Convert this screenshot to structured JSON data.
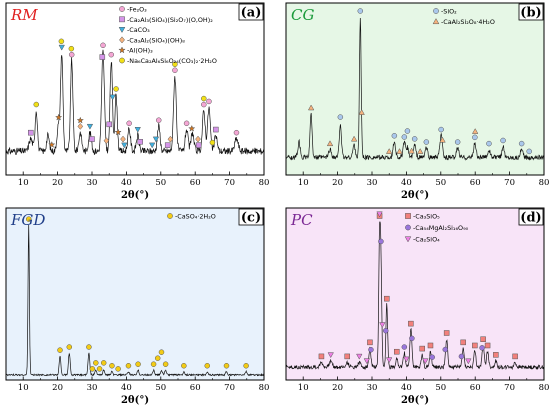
{
  "chart_data": [
    {
      "type": "line",
      "panel_label": "(a)",
      "title": "RM",
      "title_color": "#e02020",
      "background": "#ffffff",
      "xlabel": "2θ(°)",
      "xlim": [
        5,
        80
      ],
      "xticks": [
        10,
        20,
        30,
        40,
        50,
        60,
        70,
        80
      ],
      "ylim": [
        0,
        100
      ],
      "pattern": {
        "baseline": 14,
        "noise": 2.2,
        "peaks": [
          [
            12.2,
            8,
            0.5
          ],
          [
            13.8,
            26,
            0.35
          ],
          [
            17.2,
            10,
            0.4
          ],
          [
            20.2,
            16,
            0.4
          ],
          [
            21.2,
            62,
            0.35
          ],
          [
            24.1,
            58,
            0.35
          ],
          [
            26.6,
            12,
            0.4
          ],
          [
            29.4,
            12,
            0.4
          ],
          [
            33.2,
            64,
            0.4
          ],
          [
            35.6,
            58,
            0.35
          ],
          [
            37.0,
            36,
            0.35
          ],
          [
            40.8,
            14,
            0.4
          ],
          [
            43.3,
            10,
            0.4
          ],
          [
            49.4,
            16,
            0.4
          ],
          [
            54.1,
            48,
            0.4
          ],
          [
            57.5,
            14,
            0.4
          ],
          [
            59.2,
            12,
            0.4
          ],
          [
            62.5,
            26,
            0.4
          ],
          [
            64.0,
            28,
            0.4
          ],
          [
            66.0,
            10,
            0.4
          ],
          [
            72.0,
            8,
            0.5
          ]
        ]
      },
      "series": [
        {
          "name": "-Fe₂O₃",
          "shape": "circle",
          "color": "#f4a6d4",
          "x": [
            24.1,
            33.2,
            35.6,
            40.8,
            49.4,
            54.1,
            57.5,
            62.5,
            64.0,
            72.0
          ]
        },
        {
          "name": "-Ca₂Al₃(SiO₄)(Si₂O₇)(O,OH)₂",
          "shape": "square",
          "color": "#d494e8",
          "x": [
            12.2,
            30.0,
            33.0,
            35.0,
            44.0,
            52.0,
            61.0,
            66.0
          ]
        },
        {
          "name": "-CaCO₃",
          "shape": "triangle-down",
          "color": "#3fb0e0",
          "x": [
            21.2,
            29.4,
            36.0,
            39.4,
            43.3,
            47.5,
            48.6
          ]
        },
        {
          "name": "-Ca₃Al₂(SiO₄)(OH)₈",
          "shape": "diamond",
          "color": "#f6b37e",
          "x": [
            26.6,
            34.2,
            39.0,
            52.8,
            60.8
          ]
        },
        {
          "name": "-Al(OH)₃",
          "shape": "star",
          "color": "#d07520",
          "x": [
            18.3,
            20.3,
            26.6,
            37.6,
            59.0
          ]
        },
        {
          "name": "-Na₆Ca₂Al₆Si₆O₂₄(CO₃)₂·2H₂O",
          "shape": "circle",
          "color": "#f2e016",
          "x": [
            13.8,
            21.1,
            24.0,
            37.0,
            54.1,
            62.5,
            65.0
          ]
        }
      ]
    },
    {
      "type": "line",
      "panel_label": "(b)",
      "title": "CG",
      "title_color": "#1a9a3a",
      "background": "#e6f7e6",
      "xlabel": "2θ(°)",
      "xlim": [
        5,
        80
      ],
      "xticks": [
        10,
        20,
        30,
        40,
        50,
        60,
        70,
        80
      ],
      "ylim": [
        0,
        100
      ],
      "pattern": {
        "baseline": 10,
        "noise": 1.5,
        "peaks": [
          [
            8.8,
            10,
            0.35
          ],
          [
            12.3,
            28,
            0.3
          ],
          [
            17.8,
            5,
            0.4
          ],
          [
            20.8,
            22,
            0.3
          ],
          [
            24.8,
            8,
            0.35
          ],
          [
            26.6,
            90,
            0.25
          ],
          [
            36.5,
            10,
            0.35
          ],
          [
            39.4,
            9,
            0.35
          ],
          [
            40.3,
            6,
            0.35
          ],
          [
            42.4,
            8,
            0.35
          ],
          [
            45.8,
            6,
            0.35
          ],
          [
            50.1,
            14,
            0.35
          ],
          [
            54.9,
            6,
            0.35
          ],
          [
            59.9,
            9,
            0.35
          ],
          [
            64.0,
            5,
            0.35
          ],
          [
            68.1,
            7,
            0.35
          ],
          [
            73.5,
            5,
            0.35
          ]
        ]
      },
      "series": [
        {
          "name": "-SiO₂",
          "shape": "circle",
          "color": "#aac8ec",
          "x": [
            20.8,
            26.6,
            36.5,
            39.4,
            40.3,
            42.4,
            45.8,
            50.1,
            54.9,
            59.9,
            64.0,
            68.1,
            73.5,
            75.7
          ]
        },
        {
          "name": "-CaAl₂Si₂O₈·4H₂O",
          "shape": "triangle-up",
          "color": "#f6b37e",
          "x": [
            12.3,
            17.8,
            24.8,
            27.0,
            35.0,
            38.0,
            41.5,
            44.0,
            50.5,
            60.0
          ]
        }
      ]
    },
    {
      "type": "line",
      "panel_label": "(c)",
      "title": "FGD",
      "title_color": "#1f3e88",
      "background": "#e8f2fc",
      "xlabel": "2θ(°)",
      "xlim": [
        5,
        80
      ],
      "xticks": [
        10,
        20,
        30,
        40,
        50,
        60,
        70,
        80
      ],
      "ylim": [
        0,
        100
      ],
      "pattern": {
        "baseline": 2,
        "noise": 0.5,
        "peaks": [
          [
            11.6,
            96,
            0.2
          ],
          [
            20.7,
            12,
            0.25
          ],
          [
            23.4,
            14,
            0.25
          ],
          [
            29.1,
            14,
            0.25
          ],
          [
            31.1,
            3,
            0.25
          ],
          [
            33.4,
            3,
            0.25
          ],
          [
            35.8,
            2,
            0.25
          ],
          [
            40.6,
            2,
            0.25
          ],
          [
            43.4,
            3,
            0.25
          ],
          [
            47.9,
            3,
            0.25
          ],
          [
            50.2,
            3,
            0.25
          ],
          [
            51.4,
            3,
            0.25
          ],
          [
            56.7,
            2,
            0.25
          ],
          [
            63.5,
            2,
            0.25
          ],
          [
            69.1,
            2,
            0.25
          ],
          [
            74.8,
            2,
            0.25
          ]
        ]
      },
      "series": [
        {
          "name": "-CaSO₄·2H₂O",
          "shape": "circle",
          "color": "#f2cb16",
          "x": [
            11.6,
            20.7,
            23.4,
            29.1,
            30.1,
            31.1,
            32.2,
            33.4,
            35.8,
            37.6,
            40.6,
            43.4,
            47.9,
            49.1,
            50.2,
            51.4,
            56.7,
            63.5,
            69.1,
            74.8
          ]
        }
      ]
    },
    {
      "type": "line",
      "panel_label": "(d)",
      "title": "PC",
      "title_color": "#7b2894",
      "background": "#f8e4f8",
      "xlabel": "2θ(°)",
      "xlim": [
        5,
        80
      ],
      "xticks": [
        10,
        20,
        30,
        40,
        50,
        60,
        70,
        80
      ],
      "ylim": [
        0,
        100
      ],
      "pattern": {
        "baseline": 7,
        "noise": 1.2,
        "peaks": [
          [
            15.3,
            3,
            0.4
          ],
          [
            18.0,
            4,
            0.4
          ],
          [
            22.8,
            3,
            0.4
          ],
          [
            26.3,
            3,
            0.4
          ],
          [
            29.4,
            12,
            0.3
          ],
          [
            32.2,
            78,
            0.25
          ],
          [
            32.6,
            55,
            0.25
          ],
          [
            34.3,
            40,
            0.25
          ],
          [
            37.2,
            6,
            0.3
          ],
          [
            39.4,
            9,
            0.3
          ],
          [
            41.3,
            24,
            0.3
          ],
          [
            44.6,
            8,
            0.3
          ],
          [
            47.0,
            10,
            0.3
          ],
          [
            51.7,
            18,
            0.3
          ],
          [
            56.5,
            12,
            0.3
          ],
          [
            59.9,
            10,
            0.3
          ],
          [
            62.3,
            14,
            0.3
          ],
          [
            63.6,
            10,
            0.3
          ],
          [
            66.0,
            4,
            0.3
          ],
          [
            71.6,
            3,
            0.3
          ]
        ]
      },
      "series": [
        {
          "name": "-Ca₃SiO₅",
          "shape": "square",
          "color": "#f2807c",
          "x": [
            15.3,
            22.8,
            29.4,
            32.2,
            34.3,
            37.2,
            41.3,
            44.6,
            47.0,
            51.7,
            56.5,
            59.9,
            62.3,
            63.6,
            66.0,
            71.6
          ]
        },
        {
          "name": "-Ca₅₄MgAl₂Si₁₆O₉₀",
          "shape": "circle",
          "color": "#9a76dc",
          "x": [
            29.7,
            32.6,
            34.0,
            39.4,
            41.6,
            47.5,
            51.3,
            56.0,
            62.0
          ]
        },
        {
          "name": "-Ca₂SiO₄",
          "shape": "triangle-down",
          "color": "#ee7fe4",
          "x": [
            18.0,
            26.3,
            28.5,
            32.2,
            33.0,
            35.0,
            40.0,
            45.5,
            58.0
          ]
        }
      ]
    }
  ]
}
